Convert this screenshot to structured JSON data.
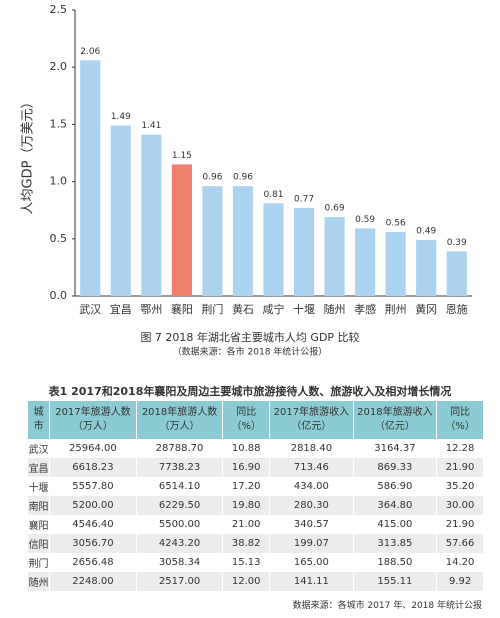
{
  "chart_data": {
    "type": "bar",
    "ylabel": "人均GDP（万美元）",
    "categories": [
      "武汉",
      "宜昌",
      "鄂州",
      "襄阳",
      "荆门",
      "黄石",
      "咸宁",
      "十堰",
      "随州",
      "孝感",
      "荆州",
      "黄冈",
      "恩施"
    ],
    "values": [
      2.06,
      1.49,
      1.41,
      1.15,
      0.96,
      0.96,
      0.81,
      0.77,
      0.69,
      0.59,
      0.56,
      0.49,
      0.39
    ],
    "colors": [
      "#abd2ef",
      "#abd2ef",
      "#abd2ef",
      "#f07f6e",
      "#abd2ef",
      "#abd2ef",
      "#abd2ef",
      "#abd2ef",
      "#abd2ef",
      "#abd2ef",
      "#abd2ef",
      "#abd2ef",
      "#abd2ef"
    ],
    "ylim": [
      0,
      2.5
    ],
    "yticks": [
      {
        "value": 0,
        "label": "0.0"
      },
      0.5,
      {
        "value": 1,
        "label": "1.0"
      },
      1.5,
      {
        "value": 2,
        "label": "2.0"
      },
      2.5
    ],
    "caption": "图 7  2018 年湖北省主要城市人均 GDP 比较",
    "source": "（数据来源：各市 2018 年统计公报）"
  },
  "table": {
    "title": "表1  2017和2018年襄阳及周边主要城市旅游接待人数、旅游收入及相对增长情况",
    "header": [
      "城市",
      "2017年旅游人数（万人）",
      "2018年旅游人数（万人）",
      "同比（%）",
      "2017年旅游收入（亿元）",
      "2018年旅游收入（亿元）",
      "同比（%）"
    ],
    "rows": [
      [
        "武汉",
        "25964.00",
        "28788.70",
        "10.88",
        "2818.40",
        "3164.37",
        "12.28"
      ],
      [
        "宜昌",
        "6618.23",
        "7738.23",
        "16.90",
        "713.46",
        "869.33",
        "21.90"
      ],
      [
        "十堰",
        "5557.80",
        "6514.10",
        "17.20",
        "434.00",
        "586.90",
        "35.20"
      ],
      [
        "南阳",
        "5200.00",
        "6229.50",
        "19.80",
        "280.30",
        "364.80",
        "30.00"
      ],
      [
        "襄阳",
        "4546.40",
        "5500.00",
        "21.00",
        "340.57",
        "415.00",
        "21.90"
      ],
      [
        "信阳",
        "3056.70",
        "4243.20",
        "38.82",
        "199.07",
        "313.85",
        "57.66"
      ],
      [
        "荆门",
        "2656.48",
        "3058.34",
        "15.13",
        "165.00",
        "188.50",
        "14.20"
      ],
      [
        "随州",
        "2248.00",
        "2517.00",
        "12.00",
        "141.11",
        "155.11",
        "9.92"
      ]
    ],
    "source": "数据来源：各城市 2017 年、2018 年统计公报"
  }
}
